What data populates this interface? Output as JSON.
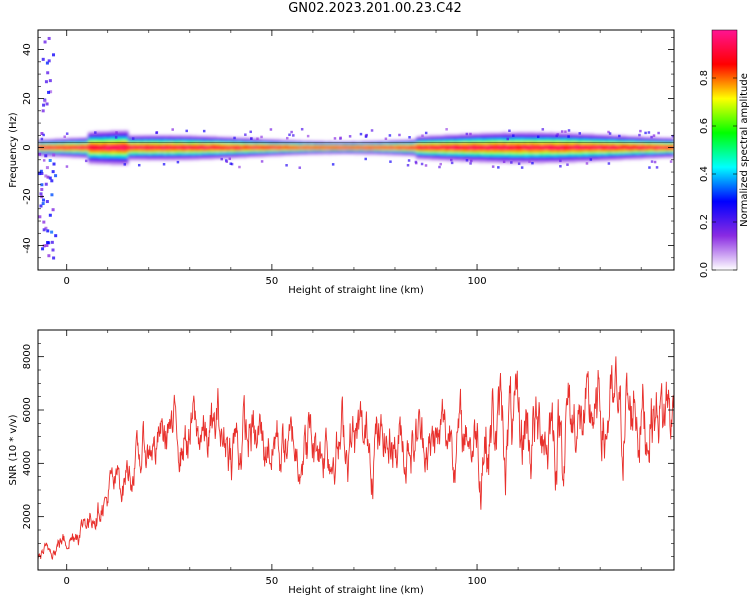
{
  "title": "GN02.2023.201.00.23.C42",
  "chart_data": [
    {
      "type": "heatmap",
      "xlabel": "Height of straight line (km)",
      "ylabel": "Frequency (Hz)",
      "xlim": [
        -7,
        148
      ],
      "ylim": [
        -50,
        48
      ],
      "x_ticks": [
        0,
        50,
        100
      ],
      "y_ticks": [
        40,
        20,
        0,
        -20,
        -40
      ],
      "colorbar": {
        "label": "Normalized spectral amplitude",
        "range": [
          0,
          1
        ],
        "ticks": [
          "0.0",
          "0.2",
          "0.4",
          "0.6",
          "0.8"
        ],
        "colors": [
          "#ffffff",
          "#8a2be2",
          "#0000ff",
          "#00ffff",
          "#00ff00",
          "#ffff00",
          "#ff0000",
          "#ff1493"
        ]
      },
      "features": [
        {
          "name": "",
          "y_center_hz": 0,
          "band_halfwidth_hz": [
            2,
            4
          ],
          "peak_amplitude": 0.9
        }
      ]
    },
    {
      "type": "line",
      "xlabel": "Height of straight line (km)",
      "ylabel": "SNR (10 * v/v)",
      "xlim": [
        -7,
        148
      ],
      "ylim": [
        0,
        9000
      ],
      "x_ticks": [
        0,
        50,
        100
      ],
      "y_ticks": [
        2000,
        4000,
        6000,
        8000
      ],
      "line_color": "#e8302c",
      "series": [
        {
          "name": "",
          "x": [
            -7,
            -5,
            -3,
            -1,
            1,
            3,
            5,
            7,
            9,
            11,
            13,
            15,
            17,
            19,
            21,
            23,
            25,
            27,
            29,
            31,
            33,
            35,
            37,
            39,
            41,
            43,
            45,
            47,
            49,
            51,
            53,
            55,
            57,
            59,
            61,
            63,
            65,
            67,
            69,
            71,
            73,
            75,
            77,
            79,
            81,
            83,
            85,
            87,
            89,
            91,
            93,
            95,
            97,
            99,
            101,
            103,
            105,
            107,
            109,
            111,
            113,
            115,
            117,
            119,
            121,
            123,
            125,
            127,
            129,
            131,
            133,
            135,
            137,
            139,
            141,
            143,
            145,
            147
          ],
          "values": [
            500,
            650,
            900,
            1100,
            1300,
            1600,
            1900,
            2300,
            2600,
            3000,
            3300,
            3700,
            4000,
            4400,
            4700,
            4900,
            5300,
            5100,
            5000,
            5200,
            5100,
            4900,
            5300,
            4800,
            4700,
            5000,
            4900,
            4700,
            4800,
            4900,
            4600,
            4500,
            4700,
            4900,
            4600,
            4800,
            4700,
            4900,
            5000,
            4800,
            4700,
            4900,
            4800,
            5000,
            4900,
            4800,
            5100,
            5000,
            4700,
            4900,
            5300,
            4800,
            5100,
            5000,
            4700,
            5300,
            5400,
            5000,
            5200,
            5100,
            5200,
            5300,
            5500,
            5100,
            5300,
            5800,
            5500,
            5300,
            5700,
            5500,
            5900,
            5600,
            5800,
            6200,
            5700,
            6200,
            6000,
            5900
          ]
        }
      ]
    }
  ]
}
